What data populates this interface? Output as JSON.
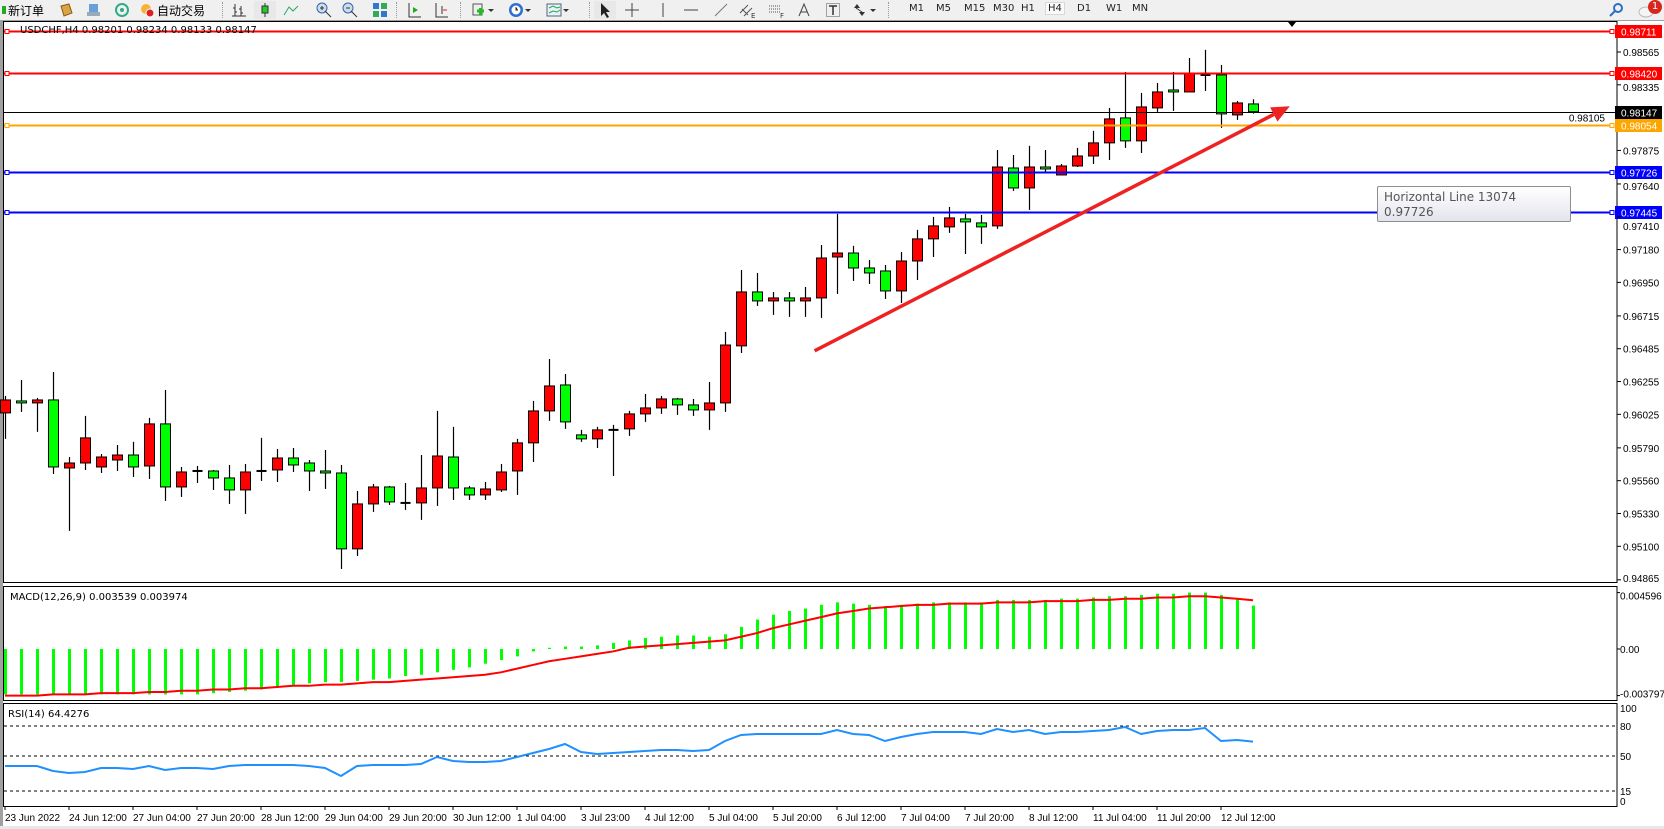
{
  "toolbar": {
    "new_order": "新订单",
    "auto_trading": "自动交易",
    "timeframes": [
      "M1",
      "M5",
      "M15",
      "M30",
      "H1",
      "H4",
      "D1",
      "W1",
      "MN"
    ],
    "active_timeframe": "H4",
    "notification_count": "1",
    "icons": [
      "new-order-icon",
      "market-watch-icon",
      "navigator-icon",
      "signals-icon",
      "auto-trading-icon",
      "bar-chart-icon",
      "candlestick-icon",
      "line-chart-icon",
      "zoom-in-icon",
      "zoom-out-icon",
      "tile-windows-icon",
      "chart-shift-icon",
      "autoscroll-icon",
      "indicators-icon",
      "periods-icon",
      "templates-icon",
      "cursor-icon",
      "crosshair-icon",
      "vertical-line-icon",
      "horizontal-line-icon",
      "trendline-icon",
      "equidistant-channel-icon",
      "fibonacci-icon",
      "text-icon",
      "text-label-icon",
      "arrows-icon",
      "search-icon",
      "notification-icon"
    ]
  },
  "chart": {
    "header": "USDCHF,H4  0.98201 0.98234 0.98133 0.98147",
    "tooltip": {
      "title": "Horizontal Line 13074",
      "value": "0.97726"
    },
    "macd_label": "MACD(12,26,9) 0.003539 0.003974",
    "rsi_label": "RSI(14) 64.4276"
  },
  "chart_data": [
    {
      "type": "candlestick",
      "symbol": "USDCHF",
      "timeframe": "H4",
      "up_color": "#ff0000",
      "down_color": "#00ff00",
      "ylim": [
        0.94865,
        0.98711
      ],
      "price_ticks": [
        "0.98565",
        "0.98335",
        "0.98105",
        "0.97875",
        "0.97640",
        "0.97410",
        "0.97180",
        "0.96950",
        "0.96715",
        "0.96485",
        "0.96255",
        "0.96025",
        "0.95790",
        "0.95560",
        "0.95330",
        "0.95100",
        "0.94865"
      ],
      "current_price": "0.98147",
      "horizontal_lines": [
        {
          "price": "0.98711",
          "color": "#ff0000"
        },
        {
          "price": "0.98420",
          "color": "#ff0000"
        },
        {
          "price": "0.98054",
          "color": "#ffa500"
        },
        {
          "price": "0.97726",
          "color": "#0000ff"
        },
        {
          "price": "0.97445",
          "color": "#0000ff"
        }
      ],
      "trend_arrow": {
        "from_price": 0.9647,
        "from_bar": 50.6,
        "to_price": 0.98185,
        "to_bar": 80.3,
        "color": "#ee2222"
      },
      "time_labels": [
        "23 Jun 2022",
        "24 Jun 12:00",
        "27 Jun 04:00",
        "27 Jun 20:00",
        "28 Jun 12:00",
        "29 Jun 04:00",
        "29 Jun 20:00",
        "30 Jun 12:00",
        "1 Jul 04:00",
        "3 Jul 23:00",
        "4 Jul 12:00",
        "5 Jul 04:00",
        "5 Jul 20:00",
        "6 Jul 12:00",
        "7 Jul 04:00",
        "7 Jul 20:00",
        "8 Jul 12:00",
        "11 Jul 04:00",
        "11 Jul 20:00",
        "12 Jul 12:00"
      ],
      "candles_ohlc": [
        [
          0.96035,
          0.96154,
          0.95853,
          0.96126
        ],
        [
          0.96119,
          0.96266,
          0.96042,
          0.96105
        ],
        [
          0.96105,
          0.9614,
          0.95902,
          0.96126
        ],
        [
          0.96126,
          0.96322,
          0.95607,
          0.95656
        ],
        [
          0.95649,
          0.95726,
          0.95208,
          0.95684
        ],
        [
          0.95684,
          0.96014,
          0.95635,
          0.9586
        ],
        [
          0.95656,
          0.95747,
          0.95614,
          0.95726
        ],
        [
          0.95705,
          0.9581,
          0.95628,
          0.9574
        ],
        [
          0.9574,
          0.95832,
          0.95586,
          0.95656
        ],
        [
          0.95663,
          0.96,
          0.95572,
          0.95958
        ],
        [
          0.95958,
          0.96196,
          0.95418,
          0.95516
        ],
        [
          0.95516,
          0.95656,
          0.95446,
          0.95621
        ],
        [
          0.95628,
          0.95663,
          0.95544,
          0.95628
        ],
        [
          0.95628,
          0.95635,
          0.95495,
          0.95579
        ],
        [
          0.95579,
          0.9567,
          0.95397,
          0.95495
        ],
        [
          0.95495,
          0.95677,
          0.95327,
          0.95621
        ],
        [
          0.95628,
          0.9586,
          0.95558,
          0.95628
        ],
        [
          0.95635,
          0.95782,
          0.95551,
          0.95719
        ],
        [
          0.95719,
          0.95789,
          0.95621,
          0.9567
        ],
        [
          0.95684,
          0.95705,
          0.95488,
          0.95628
        ],
        [
          0.95628,
          0.95775,
          0.95502,
          0.95614
        ],
        [
          0.95614,
          0.9567,
          0.94941,
          0.95082
        ],
        [
          0.95082,
          0.95488,
          0.95032,
          0.95397
        ],
        [
          0.95397,
          0.95537,
          0.95341,
          0.95516
        ],
        [
          0.95516,
          0.95523,
          0.9539,
          0.95411
        ],
        [
          0.95404,
          0.95544,
          0.95355,
          0.95404
        ],
        [
          0.95404,
          0.9574,
          0.95285,
          0.95509
        ],
        [
          0.95509,
          0.96049,
          0.95383,
          0.95733
        ],
        [
          0.95726,
          0.95937,
          0.95425,
          0.95509
        ],
        [
          0.95509,
          0.95523,
          0.95425,
          0.9546
        ],
        [
          0.9546,
          0.95551,
          0.95425,
          0.95502
        ],
        [
          0.95495,
          0.95677,
          0.95481,
          0.95621
        ],
        [
          0.95628,
          0.95853,
          0.9546,
          0.95825
        ],
        [
          0.95825,
          0.96119,
          0.95691,
          0.96049
        ],
        [
          0.96049,
          0.96413,
          0.95979,
          0.96224
        ],
        [
          0.96231,
          0.96308,
          0.95923,
          0.95972
        ],
        [
          0.95881,
          0.95916,
          0.95832,
          0.95853
        ],
        [
          0.95853,
          0.95937,
          0.95789,
          0.95916
        ],
        [
          0.95916,
          0.95951,
          0.95593,
          0.95916
        ],
        [
          0.95923,
          0.96049,
          0.95874,
          0.96028
        ],
        [
          0.96028,
          0.96168,
          0.95972,
          0.9607
        ],
        [
          0.9607,
          0.96154,
          0.96028,
          0.96133
        ],
        [
          0.96133,
          0.9614,
          0.96021,
          0.96091
        ],
        [
          0.96091,
          0.96133,
          0.96014,
          0.96056
        ],
        [
          0.96056,
          0.96252,
          0.95916,
          0.96105
        ],
        [
          0.96105,
          0.96603,
          0.96042,
          0.96511
        ],
        [
          0.96505,
          0.97037,
          0.96455,
          0.96883
        ],
        [
          0.96883,
          0.97016,
          0.96785,
          0.9682
        ],
        [
          0.9682,
          0.96883,
          0.96722,
          0.96841
        ],
        [
          0.96841,
          0.96883,
          0.96708,
          0.9682
        ],
        [
          0.9682,
          0.96918,
          0.96708,
          0.96841
        ],
        [
          0.96841,
          0.97212,
          0.96701,
          0.97121
        ],
        [
          0.97128,
          0.9743,
          0.96869,
          0.97156
        ],
        [
          0.97156,
          0.97206,
          0.9696,
          0.97051
        ],
        [
          0.97051,
          0.97107,
          0.96939,
          0.97016
        ],
        [
          0.9703,
          0.97072,
          0.96834,
          0.9689
        ],
        [
          0.9689,
          0.97163,
          0.96806,
          0.971
        ],
        [
          0.971,
          0.97318,
          0.96967,
          0.97255
        ],
        [
          0.97255,
          0.97409,
          0.97128,
          0.97346
        ],
        [
          0.97339,
          0.97479,
          0.97297,
          0.97402
        ],
        [
          0.97395,
          0.9743,
          0.97149,
          0.97374
        ],
        [
          0.97367,
          0.97423,
          0.9722,
          0.97339
        ],
        [
          0.97346,
          0.97878,
          0.97325,
          0.97759
        ],
        [
          0.97752,
          0.97843,
          0.97591,
          0.97612
        ],
        [
          0.97612,
          0.97907,
          0.97458,
          0.97759
        ],
        [
          0.97759,
          0.97878,
          0.97717,
          0.97745
        ],
        [
          0.97703,
          0.9778,
          0.97703,
          0.97766
        ],
        [
          0.97766,
          0.97893,
          0.97759,
          0.97836
        ],
        [
          0.97836,
          0.98012,
          0.9778,
          0.97928
        ],
        [
          0.97928,
          0.98173,
          0.97808,
          0.98096
        ],
        [
          0.98103,
          0.98425,
          0.97893,
          0.97942
        ],
        [
          0.97942,
          0.98278,
          0.97857,
          0.9818
        ],
        [
          0.98173,
          0.98348,
          0.98145,
          0.98285
        ],
        [
          0.98299,
          0.98425,
          0.98152,
          0.98285
        ],
        [
          0.98285,
          0.98523,
          0.98285,
          0.98411
        ],
        [
          0.98404,
          0.9858,
          0.98292,
          0.98404
        ],
        [
          0.98404,
          0.98474,
          0.98033,
          0.98131
        ],
        [
          0.98124,
          0.98222,
          0.98089,
          0.98208
        ],
        [
          0.98201,
          0.98234,
          0.98133,
          0.98147
        ]
      ]
    },
    {
      "type": "bar",
      "indicator": "MACD(12,26,9)",
      "ylim": [
        -0.003797,
        0.004596
      ],
      "ticks": [
        "0.004596",
        "0.00",
        "-0.003797"
      ],
      "histogram_color": "#00ff00",
      "signal_color": "#ff0000",
      "histogram": [
        -0.0037,
        -0.0037,
        -0.0037,
        -0.0037,
        -0.0037,
        -0.0037,
        -0.0037,
        -0.0037,
        -0.0037,
        -0.0037,
        -0.0037,
        -0.0037,
        -0.0037,
        -0.0036,
        -0.0035,
        -0.0034,
        -0.0033,
        -0.0031,
        -0.003,
        -0.0028,
        -0.0027,
        -0.0027,
        -0.0026,
        -0.0025,
        -0.0024,
        -0.0022,
        -0.0021,
        -0.0019,
        -0.0017,
        -0.0015,
        -0.0012,
        -0.0009,
        -0.0006,
        -0.0002,
        0.0001,
        0.0002,
        0.0002,
        0.0003,
        0.0005,
        0.0007,
        0.0009,
        0.001,
        0.0011,
        0.0011,
        0.001,
        0.0012,
        0.0018,
        0.0024,
        0.0028,
        0.0031,
        0.0033,
        0.0036,
        0.0038,
        0.0037,
        0.0036,
        0.0035,
        0.0036,
        0.0037,
        0.0038,
        0.0038,
        0.0038,
        0.0038,
        0.004,
        0.004,
        0.004,
        0.004,
        0.0041,
        0.0041,
        0.0042,
        0.0043,
        0.0043,
        0.0044,
        0.0045,
        0.0045,
        0.0046,
        0.0046,
        0.0044,
        0.0041,
        0.003539
      ],
      "signal": [
        -0.0038,
        -0.0038,
        -0.0038,
        -0.0037,
        -0.0037,
        -0.0037,
        -0.0036,
        -0.0036,
        -0.0036,
        -0.0035,
        -0.0035,
        -0.0034,
        -0.0034,
        -0.0033,
        -0.0033,
        -0.0032,
        -0.0032,
        -0.0031,
        -0.003,
        -0.003,
        -0.0029,
        -0.0029,
        -0.0028,
        -0.0027,
        -0.0027,
        -0.0026,
        -0.0025,
        -0.0024,
        -0.0023,
        -0.0022,
        -0.0021,
        -0.0019,
        -0.0016,
        -0.0013,
        -0.001,
        -0.0008,
        -0.0006,
        -0.0004,
        -0.0002,
        0.0001,
        0.0002,
        0.0003,
        0.0004,
        0.0005,
        0.0006,
        0.0007,
        0.001,
        0.0013,
        0.0017,
        0.002,
        0.0023,
        0.0026,
        0.0029,
        0.0031,
        0.0033,
        0.0034,
        0.0035,
        0.0036,
        0.0036,
        0.0037,
        0.0037,
        0.0037,
        0.0038,
        0.0038,
        0.0038,
        0.0039,
        0.0039,
        0.0039,
        0.004,
        0.004,
        0.0041,
        0.0041,
        0.0042,
        0.0042,
        0.0043,
        0.0043,
        0.0042,
        0.0041,
        0.003974
      ]
    },
    {
      "type": "line",
      "indicator": "RSI(14)",
      "ylim": [
        0,
        100
      ],
      "ticks": [
        "100",
        "80",
        "50",
        "15",
        "0"
      ],
      "levels": [
        80,
        50,
        15
      ],
      "color": "#1e90ff",
      "values": [
        40,
        40,
        40,
        35,
        33,
        34,
        38,
        38,
        37,
        40,
        36,
        38,
        38,
        37,
        40,
        41,
        41,
        41,
        41,
        40,
        38,
        30,
        40,
        41,
        41,
        41,
        42,
        49,
        45,
        44,
        44,
        45,
        49,
        53,
        57,
        62,
        54,
        52,
        53,
        54,
        55,
        56,
        56,
        55,
        56,
        65,
        71,
        72,
        72,
        72,
        72,
        72,
        76,
        72,
        71,
        65,
        69,
        72,
        74,
        74,
        74,
        72,
        77,
        74,
        76,
        72,
        74,
        74,
        75,
        76,
        79,
        72,
        75,
        76,
        76,
        78,
        65,
        66,
        64.4276
      ]
    }
  ]
}
